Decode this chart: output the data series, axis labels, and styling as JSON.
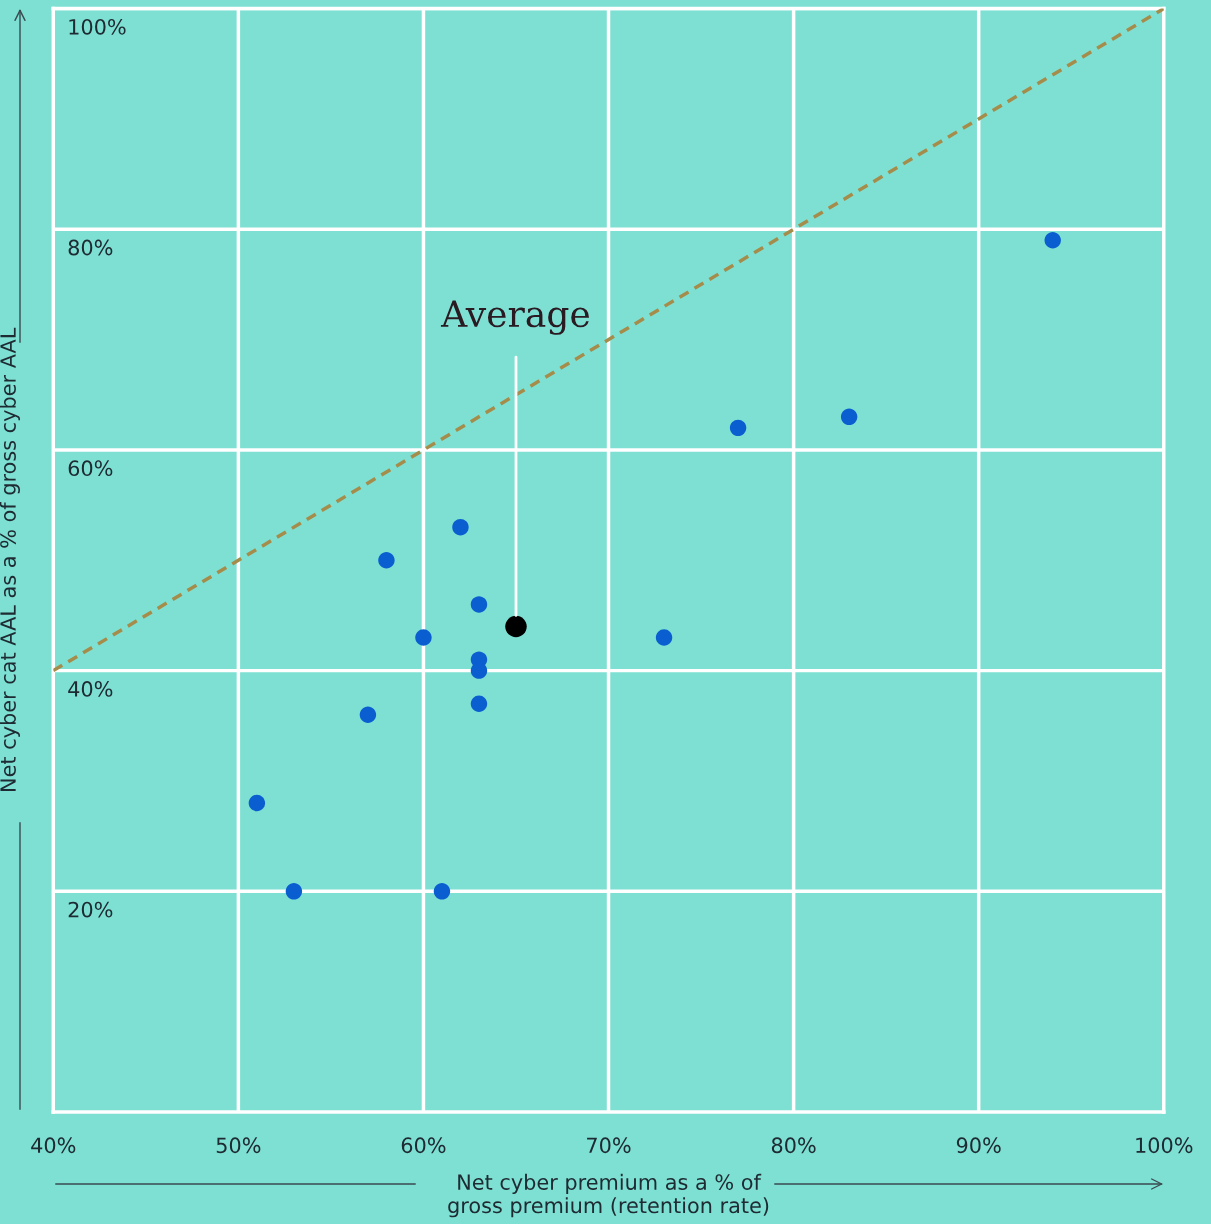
{
  "chart_data": {
    "type": "scatter",
    "xlabel": "Net cyber premium as a % of\ngross premium (retention rate)",
    "ylabel": "Net cyber cat AAL as a % of gross cyber AAL",
    "series": [
      {
        "type": "line",
        "color": "#a68c4a",
        "line_style": "dashed",
        "marker": "none",
        "x": [
          40,
          100
        ],
        "values": [
          40,
          100
        ]
      },
      {
        "color": "#0b5ed0",
        "marker": "circle",
        "x": [
          94,
          77,
          83,
          62,
          58,
          63,
          60,
          73,
          63,
          63,
          63,
          57,
          51,
          53,
          61
        ],
        "values": [
          79,
          62,
          63,
          53,
          50,
          46,
          43,
          43,
          41,
          40,
          37,
          36,
          28,
          20,
          20
        ]
      },
      {
        "name": "Average",
        "color": "#000000",
        "marker": "circle",
        "x": [
          65
        ],
        "values": [
          44
        ]
      }
    ],
    "xlim": [
      40,
      100
    ],
    "xticks": [
      {
        "value": 40,
        "label": "40%"
      },
      {
        "value": 50,
        "label": "50%"
      },
      {
        "value": 60,
        "label": "60%"
      },
      {
        "value": 70,
        "label": "70%"
      },
      {
        "value": 80,
        "label": "80%"
      },
      {
        "value": 90,
        "label": "90%"
      },
      {
        "value": 100,
        "label": "100%"
      }
    ],
    "ylim": [
      0,
      100
    ],
    "yticks": [
      {
        "value": 20,
        "label": "20%"
      },
      {
        "value": 40,
        "label": "40%"
      },
      {
        "value": 60,
        "label": "60%"
      },
      {
        "value": 80,
        "label": "80%"
      },
      {
        "value": 100,
        "label": "100%"
      }
    ],
    "grid": true
  }
}
